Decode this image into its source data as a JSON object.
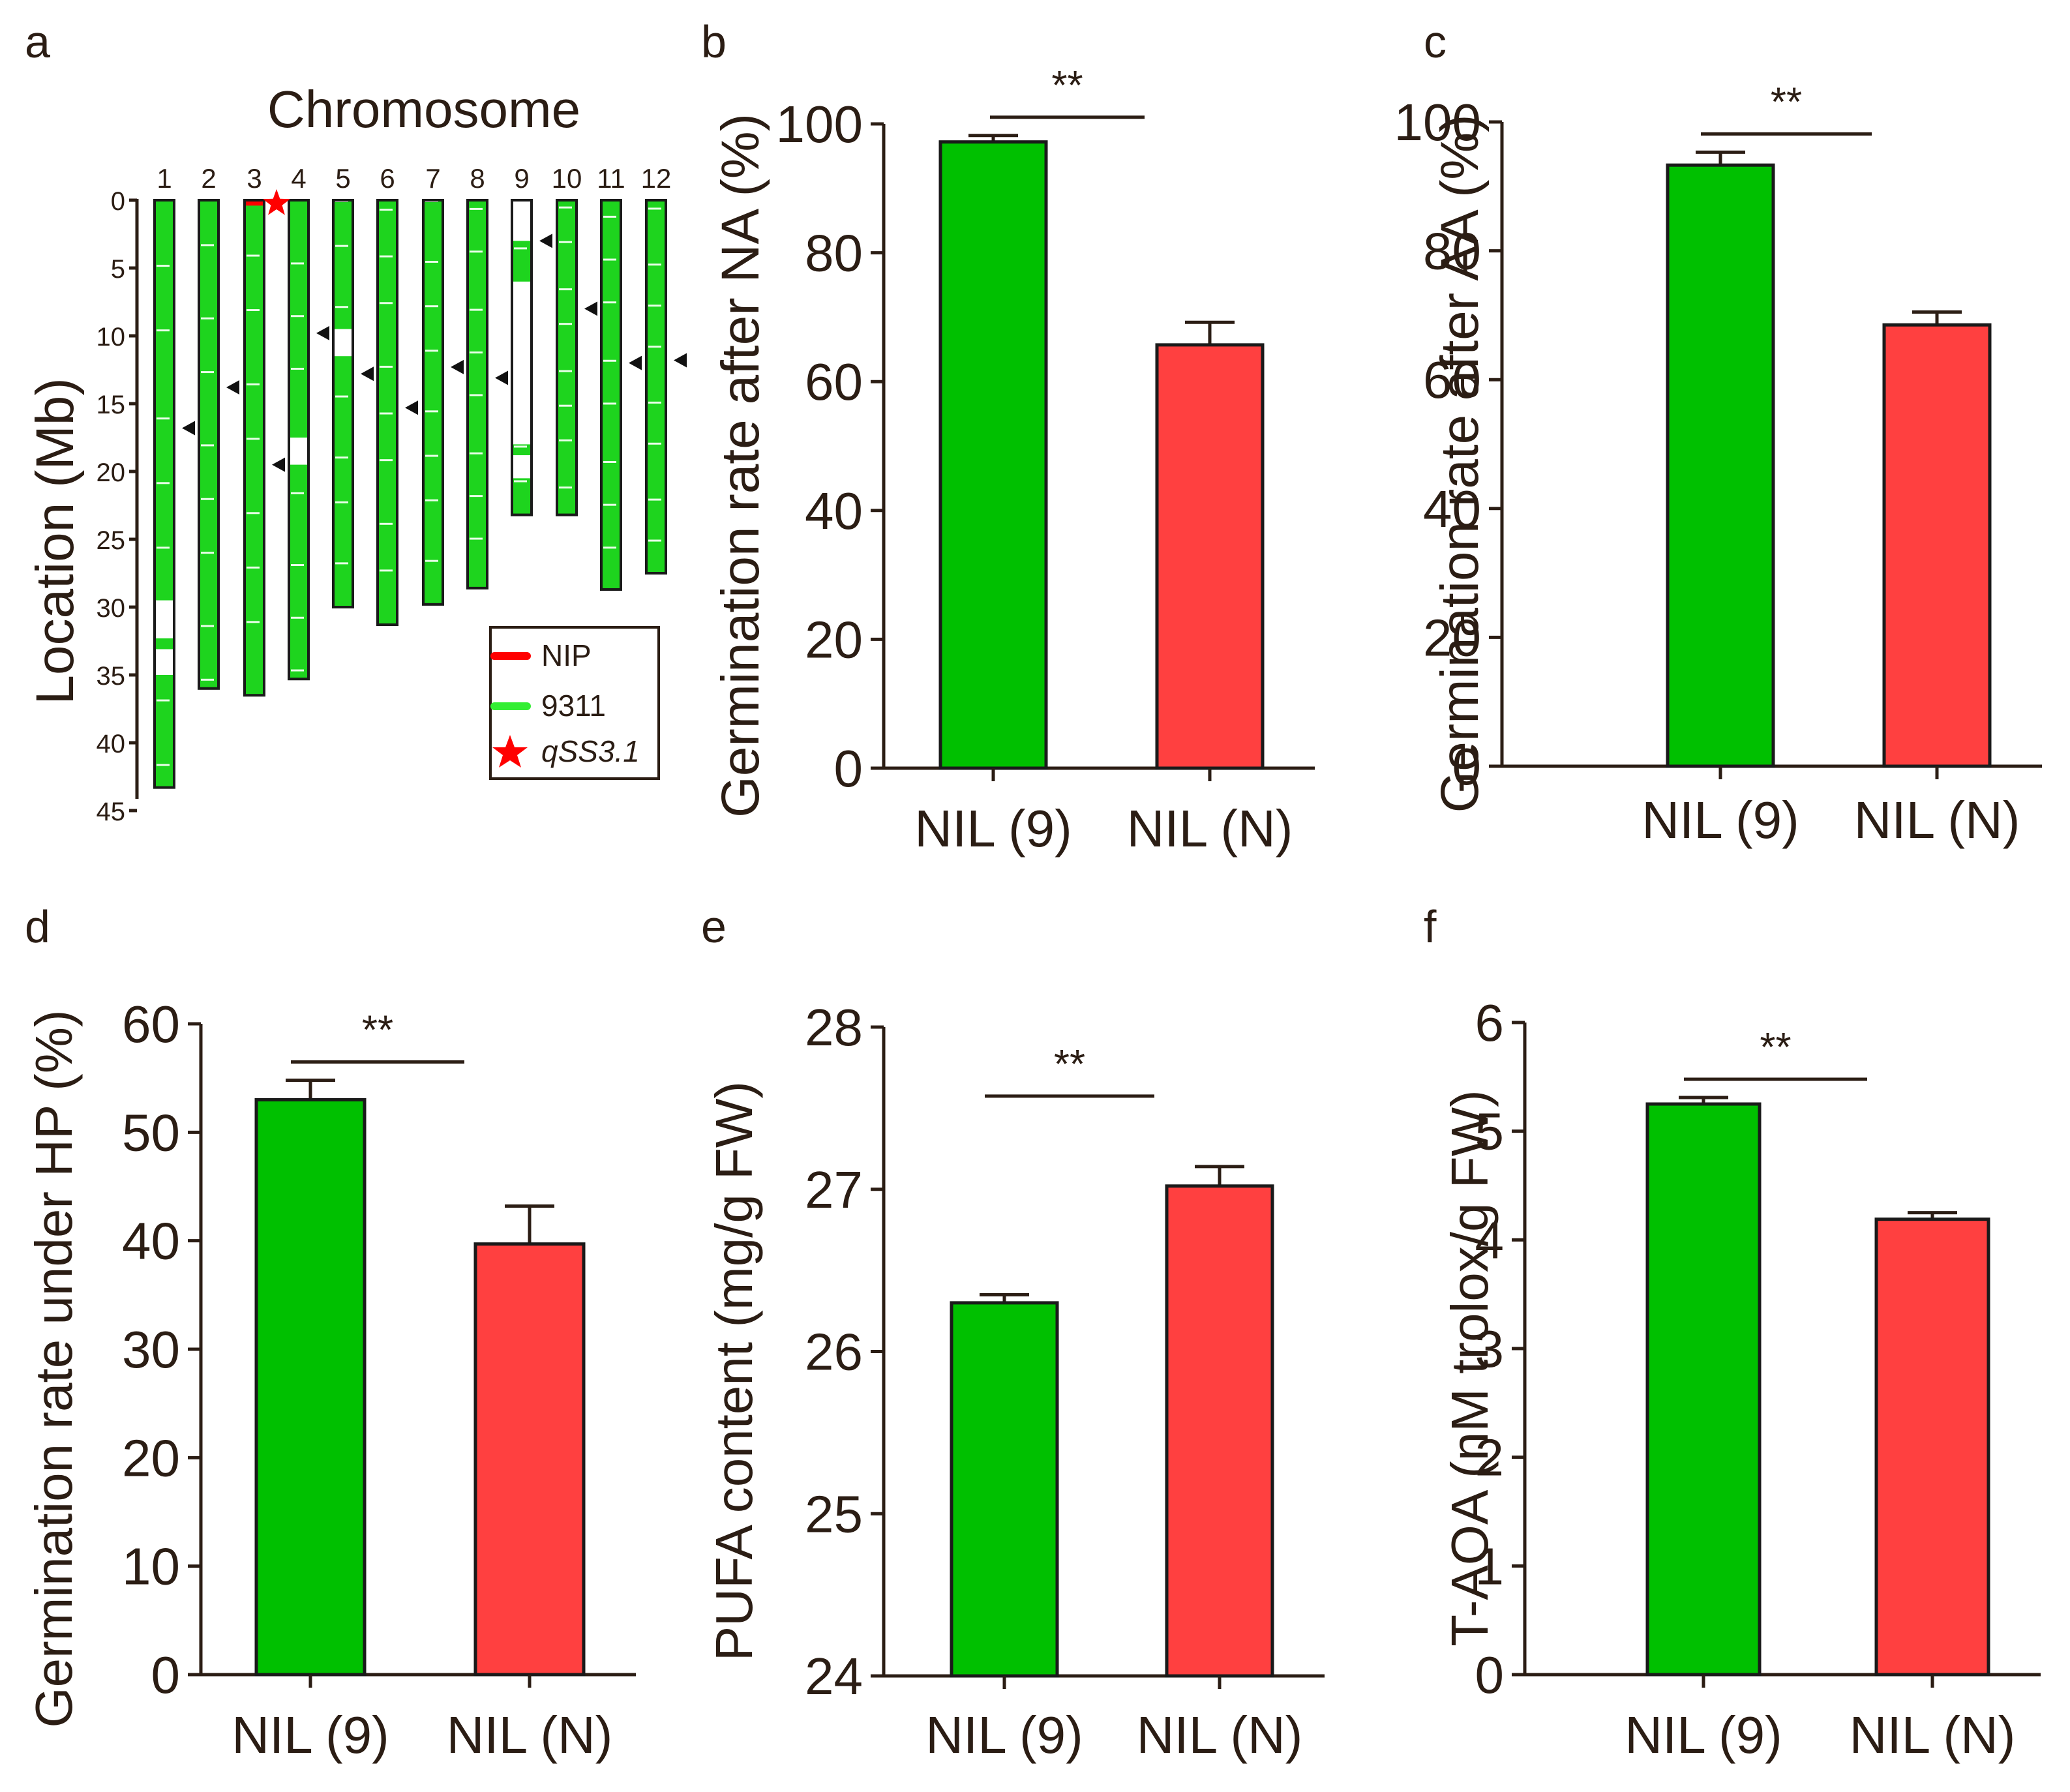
{
  "colors": {
    "green": "#00c000",
    "red": "#ff4040",
    "nip_red": "#ff0000",
    "light_green": "#33ee33",
    "text": "#2b1d14"
  },
  "panel_a": {
    "letter": "a",
    "title": "Chromosome",
    "ylabel": "Location (Mb)",
    "yticks": [
      "0",
      "5",
      "10",
      "15",
      "20",
      "25",
      "30",
      "35",
      "40",
      "45"
    ],
    "ytick_values": [
      0,
      5,
      10,
      15,
      20,
      25,
      30,
      35,
      40,
      45
    ],
    "chromosomes": [
      {
        "label": "1",
        "length": 43.3,
        "white": [
          [
            29.5,
            32.3
          ],
          [
            33.1,
            35.0
          ]
        ],
        "marker": 16.8
      },
      {
        "label": "2",
        "length": 36.0,
        "white": [],
        "marker": 13.8
      },
      {
        "label": "3",
        "length": 36.5,
        "white": [
          [
            0,
            0.35
          ]
        ],
        "red": [
          [
            0,
            0.4
          ]
        ],
        "marker": 19.5
      },
      {
        "label": "4",
        "length": 35.3,
        "white": [
          [
            17.5,
            19.5
          ]
        ],
        "marker": 9.8
      },
      {
        "label": "5",
        "length": 30.0,
        "white": [
          [
            9.5,
            11.5
          ]
        ],
        "marker": 12.8
      },
      {
        "label": "6",
        "length": 31.3,
        "white": [],
        "marker": 15.3
      },
      {
        "label": "7",
        "length": 29.8,
        "white": [],
        "marker": 12.3
      },
      {
        "label": "8",
        "length": 28.6,
        "white": [],
        "marker": 13.1
      },
      {
        "label": "9",
        "length": 23.2,
        "white": [
          [
            0,
            3.0
          ],
          [
            6.0,
            18.0
          ],
          [
            18.8,
            20.5
          ]
        ],
        "marker": 3.0
      },
      {
        "label": "10",
        "length": 23.2,
        "white": [],
        "marker": 8.0
      },
      {
        "label": "11",
        "length": 28.7,
        "white": [],
        "marker": 12.0
      },
      {
        "label": "12",
        "length": 27.5,
        "white": [],
        "marker": 11.8
      }
    ],
    "legend": [
      {
        "label": "NIP"
      },
      {
        "label": "9311"
      },
      {
        "label": "qSS3.1"
      }
    ]
  },
  "chart_data": [
    {
      "type": "bar",
      "panel": "b",
      "categories": [
        "NIL (9)",
        "NIL (N)"
      ],
      "values": [
        97.2,
        65.7
      ],
      "errors": [
        1.0,
        3.5
      ],
      "ylabel": "Germination rate after NA (%)",
      "ylim": [
        0,
        100
      ],
      "yticks": [
        0,
        20,
        40,
        60,
        80,
        100
      ],
      "significance": "**"
    },
    {
      "type": "bar",
      "panel": "c",
      "categories": [
        "NIL (9)",
        "NIL (N)"
      ],
      "values": [
        93.3,
        68.5
      ],
      "errors": [
        2.0,
        2.0
      ],
      "ylabel": "Germination rate after AA (%)",
      "ylim": [
        0,
        100
      ],
      "yticks": [
        0,
        20,
        40,
        60,
        80,
        100
      ],
      "significance": "**"
    },
    {
      "type": "bar",
      "panel": "d",
      "categories": [
        "NIL (9)",
        "NIL (N)"
      ],
      "values": [
        53.0,
        39.7
      ],
      "errors": [
        1.8,
        3.5
      ],
      "ylabel": "Germination rate under HP (%)",
      "ylim": [
        0,
        60
      ],
      "yticks": [
        0,
        10,
        20,
        30,
        40,
        50,
        60
      ],
      "significance": "**"
    },
    {
      "type": "bar",
      "panel": "e",
      "categories": [
        "NIL (9)",
        "NIL (N)"
      ],
      "values": [
        26.3,
        27.02
      ],
      "errors": [
        0.05,
        0.12
      ],
      "ylabel": "PUFA content (mg/g FW)",
      "ylim": [
        24,
        28
      ],
      "yticks": [
        24,
        25,
        26,
        27,
        28
      ],
      "significance": "**"
    },
    {
      "type": "bar",
      "panel": "f",
      "categories": [
        "NIL (9)",
        "NIL (N)"
      ],
      "values": [
        5.25,
        4.19
      ],
      "errors": [
        0.06,
        0.06
      ],
      "ylabel": "T-AOA (nM trolox/g FW)",
      "ylim": [
        0,
        6
      ],
      "yticks": [
        0,
        1,
        2,
        3,
        4,
        5,
        6
      ],
      "significance": "**"
    }
  ]
}
